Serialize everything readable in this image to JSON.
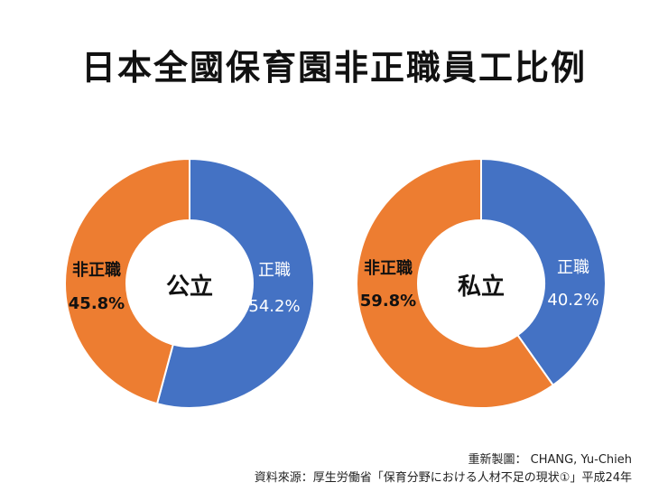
{
  "title": "日本全國保育園非正職員工比例",
  "chart_data": [
    {
      "type": "pie",
      "center_label": "公立",
      "slices": [
        {
          "label": "正職",
          "value": 54.2,
          "display": "54.2%",
          "color": "#4472C4"
        },
        {
          "label": "非正職",
          "value": 45.8,
          "display": "45.8%",
          "color": "#ED7D31"
        }
      ]
    },
    {
      "type": "pie",
      "center_label": "私立",
      "slices": [
        {
          "label": "正職",
          "value": 40.2,
          "display": "40.2%",
          "color": "#4472C4"
        },
        {
          "label": "非正職",
          "value": 59.8,
          "display": "59.8%",
          "color": "#ED7D31"
        }
      ]
    }
  ],
  "credits": {
    "redraw": "重新製圖： CHANG, Yu-Chieh",
    "source": "資料來源：厚生労働省「保育分野における人材不足の現状①」平成24年"
  }
}
